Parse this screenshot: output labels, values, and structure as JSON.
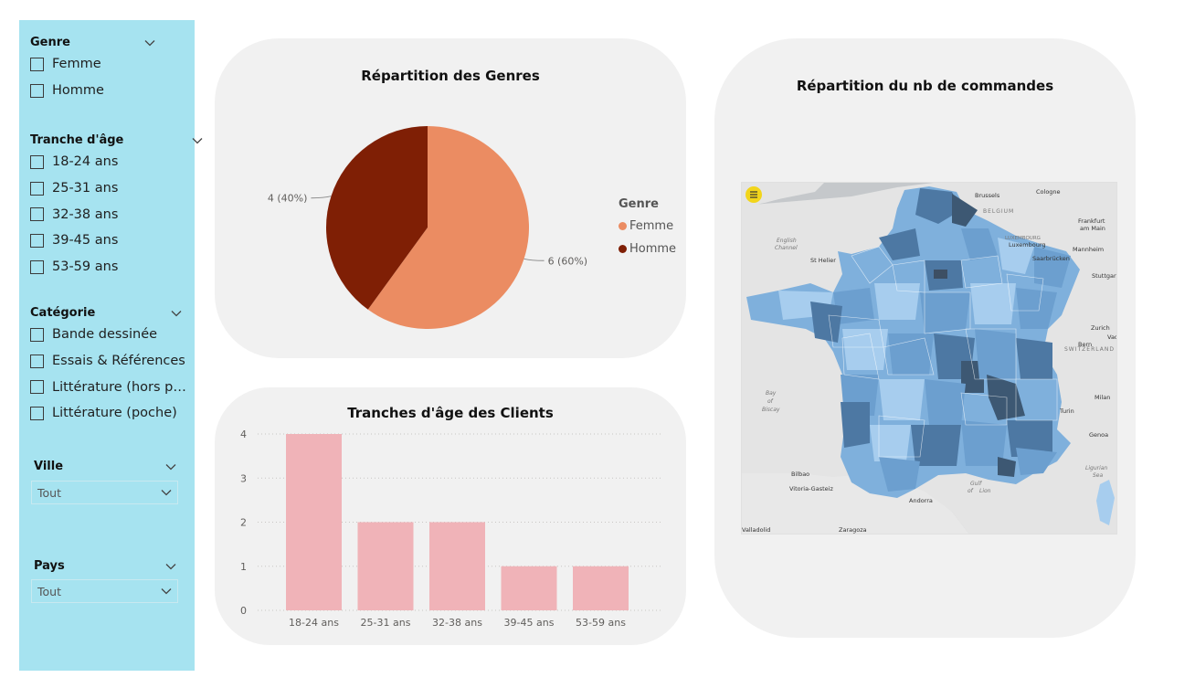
{
  "slicers": {
    "genre": {
      "title": "Genre",
      "options": [
        "Femme",
        "Homme"
      ]
    },
    "tranche": {
      "title": "Tranche d'âge",
      "options": [
        "18-24 ans",
        "25-31 ans",
        "32-38 ans",
        "39-45 ans",
        "53-59 ans"
      ]
    },
    "categorie": {
      "title": "Catégorie",
      "options": [
        "Bande dessinée",
        "Essais & Références",
        "Littérature (hors po...",
        "Littérature (poche)"
      ]
    },
    "ville": {
      "title": "Ville",
      "value": "Tout"
    },
    "pays": {
      "title": "Pays",
      "value": "Tout"
    }
  },
  "pie_card": {
    "title": "Répartition des Genres",
    "legend_title": "Genre",
    "colors": {
      "Femme": "#eb8c62",
      "Homme": "#7f1f05"
    }
  },
  "bar_card": {
    "title": "Tranches d'âge des Clients",
    "bar_color": "#f0b3b8"
  },
  "map_card": {
    "title": "Répartition du nb de commandes",
    "labels": {
      "brussels": "Brussels",
      "cologne": "Cologne",
      "belgium": "BELGIUM",
      "frankfurt": "Frankfurt",
      "frankfurt2": "am Main",
      "luxembourg_country": "LUXEMBOURG",
      "luxembourg": "Luxembourg",
      "mannheim": "Mannheim",
      "saarbrucken": "Saarbrücken",
      "stuttgart": "Stuttgart",
      "english": "English",
      "channel": "Channel",
      "st_helier": "St Helier",
      "zurich": "Zurich",
      "vaduz": "Vadu",
      "bern": "Bern",
      "switzerland": "SWITZERLAND",
      "bay": "Bay",
      "of": "of",
      "biscay": "Biscay",
      "milan": "Milan",
      "turin": "Turin",
      "genoa": "Genoa",
      "bilbao": "Bilbao",
      "vitoria": "Vitoria-Gasteiz",
      "gulf": "Gulf",
      "of2": "of",
      "lion": "Lion",
      "ligurian": "Ligurian",
      "sea": "Sea",
      "andorra": "Andorra",
      "valladolid": "Valladolid",
      "zaragoza": "Zaragoza"
    }
  },
  "chart_data": [
    {
      "type": "pie",
      "title": "Répartition des Genres",
      "legend_title": "Genre",
      "categories": [
        "Femme",
        "Homme"
      ],
      "values": [
        6,
        4
      ],
      "data_labels": [
        "6 (60%)",
        "4 (40%)"
      ],
      "legend_position": "right"
    },
    {
      "type": "bar",
      "title": "Tranches d'âge des Clients",
      "categories": [
        "18-24 ans",
        "25-31 ans",
        "32-38 ans",
        "39-45 ans",
        "53-59 ans"
      ],
      "values": [
        4,
        2,
        2,
        1,
        1
      ],
      "y_ticks": [
        "0",
        "1",
        "2",
        "3",
        "4"
      ],
      "ylim": [
        0,
        4
      ],
      "grid": "dotted horizontal"
    }
  ]
}
